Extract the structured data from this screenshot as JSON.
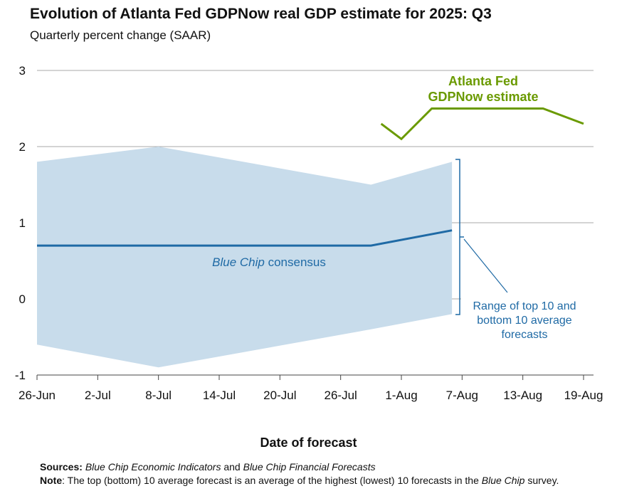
{
  "title": "Evolution of Atlanta Fed GDPNow real GDP estimate for 2025: Q3",
  "subtitle": "Quarterly percent change (SAAR)",
  "colors": {
    "gdpnow": "#6a9a00",
    "consensus": "#1f6aa5",
    "range_fill": "#c8dceb",
    "grid": "#a8a8a8"
  },
  "chart_data": {
    "type": "line",
    "xlabel": "Date of forecast",
    "ylabel": "",
    "ylim": [
      -1,
      3
    ],
    "yticks": [
      -1,
      0,
      1,
      2,
      3
    ],
    "xticks": [
      "26-Jun",
      "2-Jul",
      "8-Jul",
      "14-Jul",
      "20-Jul",
      "26-Jul",
      "1-Aug",
      "7-Aug",
      "13-Aug",
      "19-Aug"
    ],
    "xlim": [
      "2025-06-26",
      "2025-08-19"
    ],
    "grid": true,
    "series": [
      {
        "name": "Atlanta Fed GDPNow estimate",
        "points": [
          {
            "x": "2025-07-30",
            "y": 2.3
          },
          {
            "x": "2025-08-01",
            "y": 2.1
          },
          {
            "x": "2025-08-04",
            "y": 2.5
          },
          {
            "x": "2025-08-15",
            "y": 2.5
          },
          {
            "x": "2025-08-19",
            "y": 2.3
          }
        ]
      },
      {
        "name": "Blue Chip consensus",
        "points": [
          {
            "x": "2025-06-26",
            "y": 0.7
          },
          {
            "x": "2025-07-29",
            "y": 0.7
          },
          {
            "x": "2025-08-06",
            "y": 0.9
          }
        ]
      }
    ],
    "range_band": {
      "name": "Range of top 10 and bottom 10 average forecasts",
      "points": [
        {
          "x": "2025-06-26",
          "low": -0.6,
          "high": 1.8
        },
        {
          "x": "2025-07-08",
          "low": -0.9,
          "high": 2.0
        },
        {
          "x": "2025-07-29",
          "low": -0.4,
          "high": 1.5
        },
        {
          "x": "2025-08-06",
          "low": -0.2,
          "high": 1.8
        }
      ]
    },
    "annotations": {
      "gdpnow_line1": "Atlanta Fed",
      "gdpnow_line2": "GDPNow estimate",
      "consensus_italic": "Blue Chip",
      "consensus_rest": " consensus",
      "range_line1": "Range of top 10 and",
      "range_line2": "bottom 10 average",
      "range_line3": "forecasts"
    }
  },
  "footer": {
    "sources_label": "Sources:",
    "sources_src1": "Blue Chip Economic Indicators",
    "sources_and": " and ",
    "sources_src2": "Blue Chip Financial Forecasts",
    "note_label": "Note",
    "note_text1": ": The top (bottom) 10 average forecast is an average of the highest (lowest) 10 forecasts in the ",
    "note_italic": "Blue Chip",
    "note_text2": " survey."
  }
}
